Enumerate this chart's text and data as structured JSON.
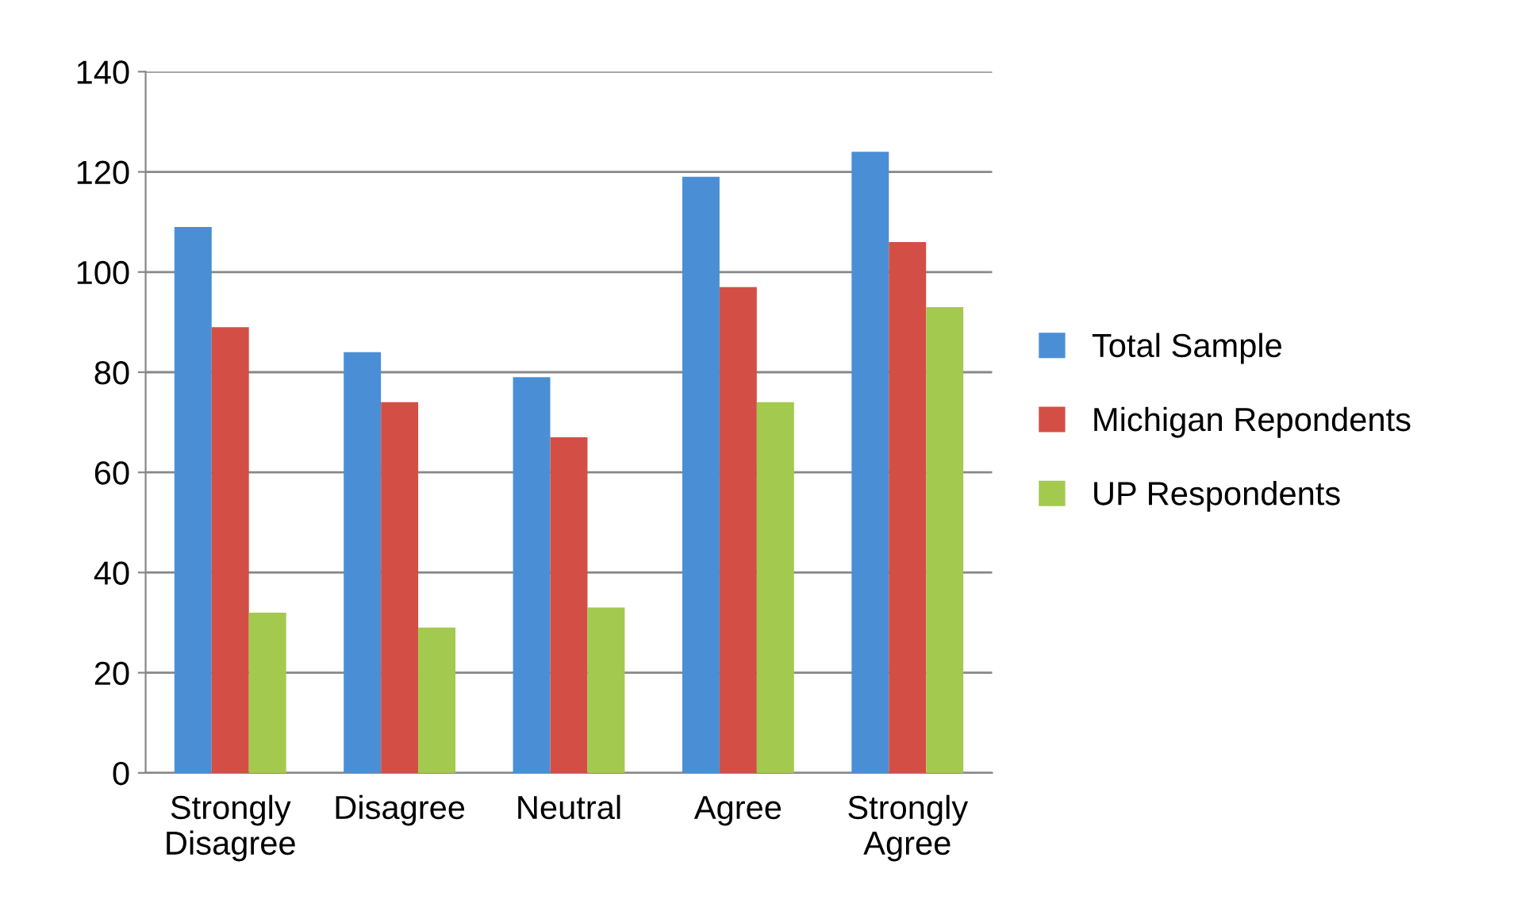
{
  "chart_data": {
    "type": "bar",
    "categories": [
      "Strongly Disagree",
      "Disagree",
      "Neutral",
      "Agree",
      "Strongly Agree"
    ],
    "series": [
      {
        "name": "Total Sample",
        "color": "#4a8fd6",
        "values": [
          109,
          84,
          79,
          119,
          124
        ]
      },
      {
        "name": "Michigan Repondents",
        "color": "#d34f45",
        "values": [
          89,
          74,
          67,
          97,
          106
        ]
      },
      {
        "name": "UP Respondents",
        "color": "#a3c94f",
        "values": [
          32,
          29,
          33,
          74,
          93
        ]
      }
    ],
    "ylim": [
      0,
      140
    ],
    "yticks": [
      0,
      20,
      40,
      60,
      80,
      100,
      120,
      140
    ],
    "grid": "y",
    "legend": "right"
  }
}
